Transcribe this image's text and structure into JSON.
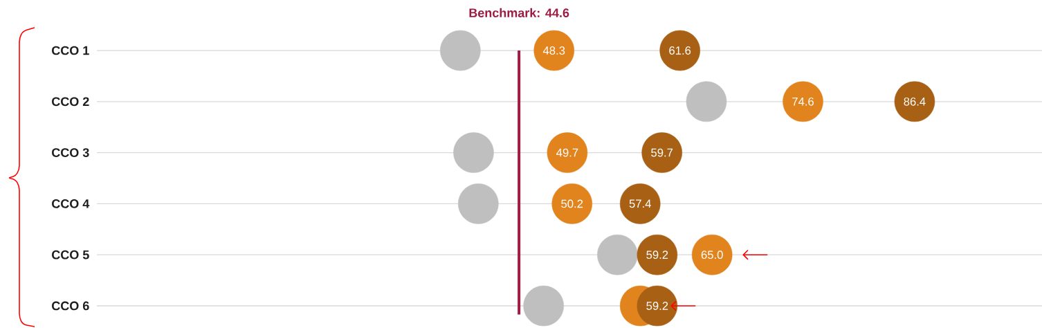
{
  "chart_data": {
    "type": "scatter",
    "orientation": "horizontal",
    "marker": "circle",
    "grid": "y",
    "tick_labels": "y",
    "categories": [
      "CCO 1",
      "CCO 2",
      "CCO 3",
      "CCO 4",
      "CCO 5",
      "CCO 6"
    ],
    "xlim": [
      0,
      100
    ],
    "series": [
      {
        "color": "#bfbfbf",
        "values": [
          38.4,
          64.4,
          39.8,
          40.3,
          55.0,
          47.2
        ]
      },
      {
        "color": "#e2841e",
        "values": [
          48.3,
          74.6,
          49.7,
          50.2,
          65.0,
          57.4
        ],
        "value_labels": [
          "48.3",
          "74.6",
          "49.7",
          "50.2",
          "65.0",
          null
        ]
      },
      {
        "color": "#a86114",
        "values": [
          61.6,
          86.4,
          59.7,
          57.4,
          59.2,
          59.2
        ],
        "value_labels": [
          "61.6",
          "86.4",
          "59.7",
          "57.4",
          "59.2",
          "59.2"
        ]
      }
    ],
    "ref_lines": [
      {
        "axis": "x",
        "value": 44.6,
        "label": "Benchmark: 44.6",
        "color": "#9e1b42"
      }
    ]
  }
}
